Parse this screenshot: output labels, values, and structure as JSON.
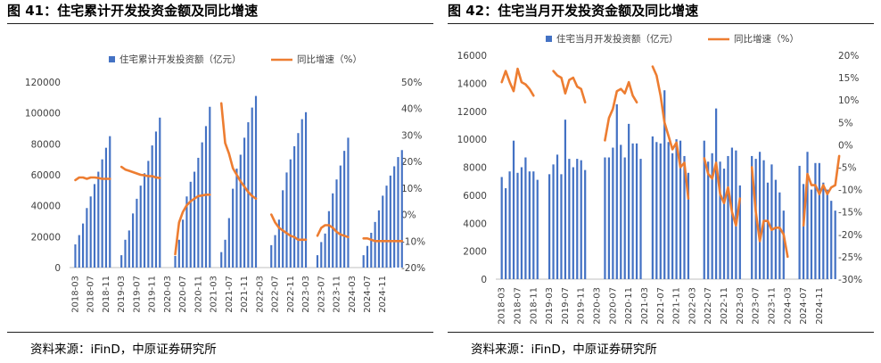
{
  "panels": [
    {
      "title": "图 41：住宅累计开发投资金额及同比增速",
      "source": "资料来源：iFinD，中原证券研究所",
      "chart_data": {
        "type": "bar+line",
        "colors": {
          "bar": "#4472C4",
          "line": "#ED7D31"
        },
        "legend": {
          "position": "top",
          "bar": "住宅累计开发投资额（亿元）",
          "line": "同比增速（%）"
        },
        "y_left": {
          "min": 0,
          "max": 120000,
          "ticks": [
            0,
            20000,
            40000,
            60000,
            80000,
            100000,
            120000
          ]
        },
        "y_right": {
          "min": -20,
          "max": 50,
          "ticks": [
            "-20%",
            "-10%",
            "0%",
            "10%",
            "20%",
            "30%",
            "40%",
            "50%"
          ],
          "values": [
            -20,
            -10,
            0,
            10,
            20,
            30,
            40,
            50
          ]
        },
        "x_tick_labels": [
          "2018-03",
          "2018-07",
          "2018-11",
          "2019-03",
          "2019-07",
          "2019-11",
          "2020-03",
          "2020-07",
          "2020-11",
          "2021-03",
          "2021-07",
          "2021-11",
          "2022-03",
          "2022-07",
          "2022-11",
          "2023-03",
          "2023-07",
          "2023-11",
          "2024-03",
          "2024-07",
          "2024-11"
        ],
        "x_tick_index": [
          1,
          5,
          9,
          13,
          17,
          21,
          25,
          29,
          33,
          37,
          41,
          45,
          49,
          53,
          57,
          61,
          65,
          69,
          73,
          77,
          81
        ],
        "n_months": 84,
        "series": [
          {
            "kind": "bar",
            "values": [
              null,
              15000,
              21000,
              28500,
              38500,
              46000,
              54000,
              62000,
              70000,
              77500,
              85000,
              null,
              null,
              8000,
              18000,
              24000,
              35000,
              44500,
              53000,
              61000,
              69000,
              79000,
              88000,
              97000,
              null,
              null,
              null,
              7500,
              18000,
              31000,
              46000,
              55500,
              62000,
              71000,
              81000,
              91500,
              104000,
              null,
              null,
              10000,
              18000,
              32000,
              51000,
              64000,
              73000,
              84000,
              94000,
              103500,
              111000,
              null,
              null,
              null,
              14500,
              21000,
              31000,
              50000,
              61500,
              70000,
              78500,
              87000,
              96000,
              100500,
              null,
              null,
              8000,
              16500,
              22000,
              36500,
              48000,
              57000,
              66000,
              75500,
              84000,
              null,
              null,
              null,
              8000,
              14000,
              22500,
              29500,
              37000,
              46500,
              53000,
              59500,
              65500,
              71500,
              76000
            ]
          },
          {
            "kind": "line",
            "values": [
              null,
              13,
              14,
              14,
              13.5,
              14,
              14,
              13.8,
              13.5,
              13.5,
              13.5,
              null,
              null,
              18,
              17,
              16.5,
              16,
              15.5,
              15,
              14.8,
              14.5,
              14.5,
              14,
              13.8,
              null,
              null,
              null,
              -15,
              -3,
              1,
              3.5,
              5,
              6,
              7,
              7.2,
              7.5,
              7.5,
              null,
              null,
              42,
              27,
              23,
              17.5,
              15,
              12.5,
              10.5,
              8.5,
              7,
              6,
              null,
              null,
              null,
              0,
              -3,
              -5,
              -6,
              -7,
              -8,
              -8.5,
              -9.5,
              -9.5,
              -9.5,
              null,
              null,
              -8,
              -5,
              -4,
              -4,
              -5,
              -6.5,
              -7.5,
              -8,
              -8.5,
              null,
              null,
              null,
              -9,
              -9,
              -9.5,
              -10,
              -10,
              -10,
              -10,
              -10,
              -10,
              -10,
              -10
            ]
          }
        ]
      }
    },
    {
      "title": "图 42：住宅当月开发投资金额及同比增速",
      "source": "资料来源：iFinD，中原证券研究所",
      "chart_data": {
        "type": "bar+line",
        "colors": {
          "bar": "#4472C4",
          "line": "#ED7D31"
        },
        "legend": {
          "position": "top",
          "bar": "住宅当月开发投资额（亿元）",
          "line": "同比增速（%）"
        },
        "y_left": {
          "min": 0,
          "max": 16000,
          "ticks": [
            0,
            2000,
            4000,
            6000,
            8000,
            10000,
            12000,
            14000,
            16000
          ]
        },
        "y_right": {
          "min": -30,
          "max": 20,
          "ticks": [
            "-30%",
            "-25%",
            "-20%",
            "-15%",
            "-10%",
            "-5%",
            "0%",
            "5%",
            "10%",
            "15%",
            "20%"
          ],
          "values": [
            -30,
            -25,
            -20,
            -15,
            -10,
            -5,
            0,
            5,
            10,
            15,
            20
          ]
        },
        "x_tick_labels": [
          "2018-03",
          "2018-07",
          "2018-11",
          "2019-03",
          "2019-07",
          "2019-11",
          "2020-03",
          "2020-07",
          "2020-11",
          "2021-03",
          "2021-07",
          "2021-11",
          "2022-03",
          "2022-07",
          "2022-11",
          "2023-03",
          "2023-07",
          "2023-11",
          "2024-03",
          "2024-07",
          "2024-11"
        ],
        "x_tick_index": [
          1,
          5,
          9,
          13,
          17,
          21,
          25,
          29,
          33,
          37,
          41,
          45,
          49,
          53,
          57,
          61,
          65,
          69,
          73,
          77,
          81
        ],
        "n_months": 84,
        "series": [
          {
            "kind": "bar",
            "values": [
              null,
              7300,
              6500,
              7700,
              9900,
              7600,
              8000,
              8700,
              7700,
              7700,
              7100,
              null,
              null,
              7500,
              8200,
              8900,
              7500,
              11400,
              8600,
              8000,
              8600,
              8500,
              7800,
              null,
              null,
              null,
              null,
              8700,
              8700,
              9400,
              12500,
              9600,
              8700,
              11100,
              9700,
              9700,
              8600,
              null,
              null,
              10200,
              9800,
              9700,
              13500,
              9800,
              9000,
              10000,
              9900,
              8800,
              7600,
              null,
              null,
              null,
              9900,
              8400,
              9000,
              12200,
              8400,
              7900,
              8800,
              9400,
              9200,
              6700,
              null,
              null,
              8800,
              8600,
              9100,
              8500,
              6900,
              8200,
              7100,
              6200,
              4900,
              null,
              null,
              null,
              8100,
              6800,
              9100,
              6400,
              8300,
              8300,
              6900,
              6400,
              5600,
              4900,
              null
            ]
          },
          {
            "kind": "line",
            "values": [
              null,
              14,
              16.5,
              14,
              12,
              17,
              14,
              13.5,
              12.5,
              11,
              null,
              null,
              null,
              null,
              16.5,
              15.5,
              15,
              11.5,
              14.5,
              15,
              13,
              12.5,
              9.5,
              null,
              null,
              null,
              null,
              1,
              6,
              8,
              12,
              12.5,
              11.5,
              14,
              11,
              9.5,
              null,
              null,
              null,
              17.5,
              15.5,
              11,
              5,
              2,
              -1,
              0.5,
              -5,
              -4,
              -12,
              null,
              null,
              null,
              -3,
              -6.5,
              -7.5,
              -4,
              -11,
              -13,
              -9.5,
              -15,
              -18,
              -12,
              null,
              null,
              -5,
              -15,
              -21.5,
              -17,
              -17,
              -19,
              -18.5,
              -18.5,
              -20,
              -25,
              null,
              null,
              null,
              -18,
              -6.5,
              -9,
              -9,
              -11,
              -9,
              -11,
              -9.5,
              -9,
              -2.5,
              null
            ]
          }
        ]
      }
    }
  ]
}
